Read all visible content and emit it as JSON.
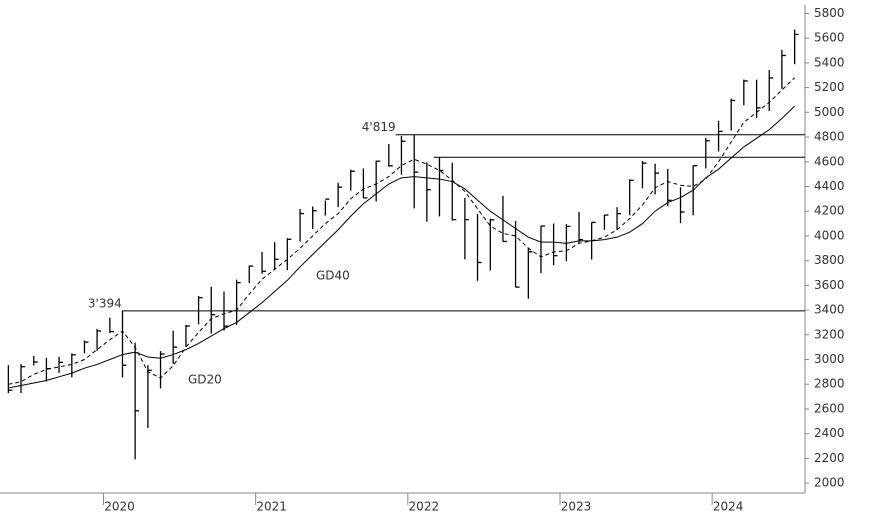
{
  "chart_data": {
    "type": "ohlc",
    "x": [
      2019.375,
      2019.458,
      2019.542,
      2019.625,
      2019.708,
      2019.792,
      2019.875,
      2019.958,
      2020.042,
      2020.125,
      2020.208,
      2020.292,
      2020.375,
      2020.458,
      2020.542,
      2020.625,
      2020.708,
      2020.792,
      2020.875,
      2020.958,
      2021.042,
      2021.125,
      2021.208,
      2021.292,
      2021.375,
      2021.458,
      2021.542,
      2021.625,
      2021.708,
      2021.792,
      2021.875,
      2021.958,
      2022.042,
      2022.125,
      2022.208,
      2022.292,
      2022.375,
      2022.458,
      2022.542,
      2022.625,
      2022.708,
      2022.792,
      2022.875,
      2022.958,
      2023.042,
      2023.125,
      2023.208,
      2023.292,
      2023.375,
      2023.458,
      2023.542,
      2023.625,
      2023.708,
      2023.792,
      2023.875,
      2023.958,
      2024.042,
      2024.125,
      2024.208,
      2024.292,
      2024.375,
      2024.458,
      2024.542
    ],
    "high": [
      2954,
      2964,
      3028,
      3014,
      3022,
      3050,
      3154,
      3248,
      3338,
      3394,
      3137,
      2955,
      3068,
      3233,
      3280,
      3514,
      3588,
      3550,
      3646,
      3760,
      3870,
      3950,
      3982,
      4218,
      4238,
      4286,
      4430,
      4537,
      4546,
      4608,
      4744,
      4808,
      4819,
      4596,
      4637,
      4593,
      4307,
      4177,
      4140,
      4325,
      4120,
      3905,
      4080,
      4100,
      4095,
      4195,
      4110,
      4170,
      4232,
      4458,
      4607,
      4584,
      4542,
      4393,
      4568,
      4794,
      4932,
      5111,
      5265,
      5264,
      5342,
      5505,
      5669
    ],
    "low": [
      2728,
      2729,
      2952,
      2822,
      2892,
      2856,
      3050,
      3070,
      3214,
      2855,
      2192,
      2447,
      2766,
      2965,
      3101,
      3284,
      3210,
      3234,
      3280,
      3618,
      3694,
      3725,
      3723,
      3955,
      4056,
      4165,
      4233,
      4367,
      4306,
      4279,
      4560,
      4495,
      4223,
      4115,
      4158,
      4124,
      3811,
      3637,
      3721,
      3955,
      3585,
      3492,
      3699,
      3764,
      3795,
      3944,
      3809,
      4049,
      4048,
      4167,
      4385,
      4336,
      4239,
      4104,
      4167,
      4546,
      4683,
      4853,
      5057,
      4954,
      5011,
      5192,
      5390
    ],
    "close": [
      2752,
      2942,
      2980,
      2926,
      2977,
      3038,
      3141,
      3231,
      3226,
      2954,
      2585,
      2912,
      3044,
      3100,
      3271,
      3500,
      3363,
      3270,
      3622,
      3756,
      3714,
      3811,
      3973,
      4181,
      4204,
      4298,
      4395,
      4523,
      4308,
      4605,
      4567,
      4766,
      4516,
      4374,
      4530,
      4132,
      4132,
      3785,
      4130,
      3955,
      3586,
      3872,
      4080,
      3840,
      4077,
      3970,
      4109,
      4169,
      4180,
      4450,
      4589,
      4508,
      4288,
      4194,
      4568,
      4770,
      4846,
      5096,
      5254,
      5036,
      5278,
      5460,
      5630
    ],
    "series": [
      {
        "name": "GD20",
        "color": "#000000",
        "dashed": true,
        "values": [
          2800,
          2820,
          2880,
          2920,
          2940,
          2960,
          3000,
          3080,
          3160,
          3230,
          3100,
          2900,
          2850,
          2950,
          3100,
          3220,
          3330,
          3370,
          3400,
          3530,
          3650,
          3730,
          3810,
          3900,
          4000,
          4100,
          4180,
          4300,
          4380,
          4420,
          4480,
          4570,
          4620,
          4580,
          4530,
          4450,
          4360,
          4220,
          4080,
          4020,
          4000,
          3900,
          3830,
          3870,
          3880,
          3940,
          3960,
          3990,
          4050,
          4140,
          4250,
          4390,
          4440,
          4410,
          4400,
          4460,
          4600,
          4760,
          4920,
          5000,
          5080,
          5180,
          5280
        ]
      },
      {
        "name": "GD40",
        "color": "#000000",
        "dashed": false,
        "values": [
          2770,
          2790,
          2810,
          2830,
          2860,
          2890,
          2930,
          2960,
          3000,
          3040,
          3060,
          3020,
          3010,
          3040,
          3080,
          3130,
          3190,
          3250,
          3300,
          3380,
          3460,
          3550,
          3640,
          3750,
          3850,
          3950,
          4050,
          4160,
          4260,
          4340,
          4420,
          4470,
          4480,
          4470,
          4460,
          4440,
          4380,
          4290,
          4200,
          4130,
          4060,
          3990,
          3950,
          3950,
          3940,
          3960,
          3960,
          3970,
          3990,
          4030,
          4100,
          4200,
          4270,
          4310,
          4370,
          4470,
          4540,
          4630,
          4720,
          4790,
          4860,
          4950,
          5050
        ]
      }
    ],
    "levels": [
      {
        "value": 4819,
        "label": "4'819",
        "from": 2021.92
      },
      {
        "value": 4637,
        "from": 2022.17
      },
      {
        "value": 3394,
        "label": "3'394",
        "from": 2020.12
      }
    ],
    "xlim": [
      2019.32,
      2024.61
    ],
    "ylim": [
      1920,
      5870
    ],
    "xticks": [
      2020,
      2021,
      2022,
      2023,
      2024
    ],
    "yticks": [
      2000,
      2200,
      2400,
      2600,
      2800,
      3000,
      3200,
      3400,
      3600,
      3800,
      4000,
      4200,
      4400,
      4600,
      4800,
      5000,
      5200,
      5400,
      5600,
      5800
    ]
  }
}
